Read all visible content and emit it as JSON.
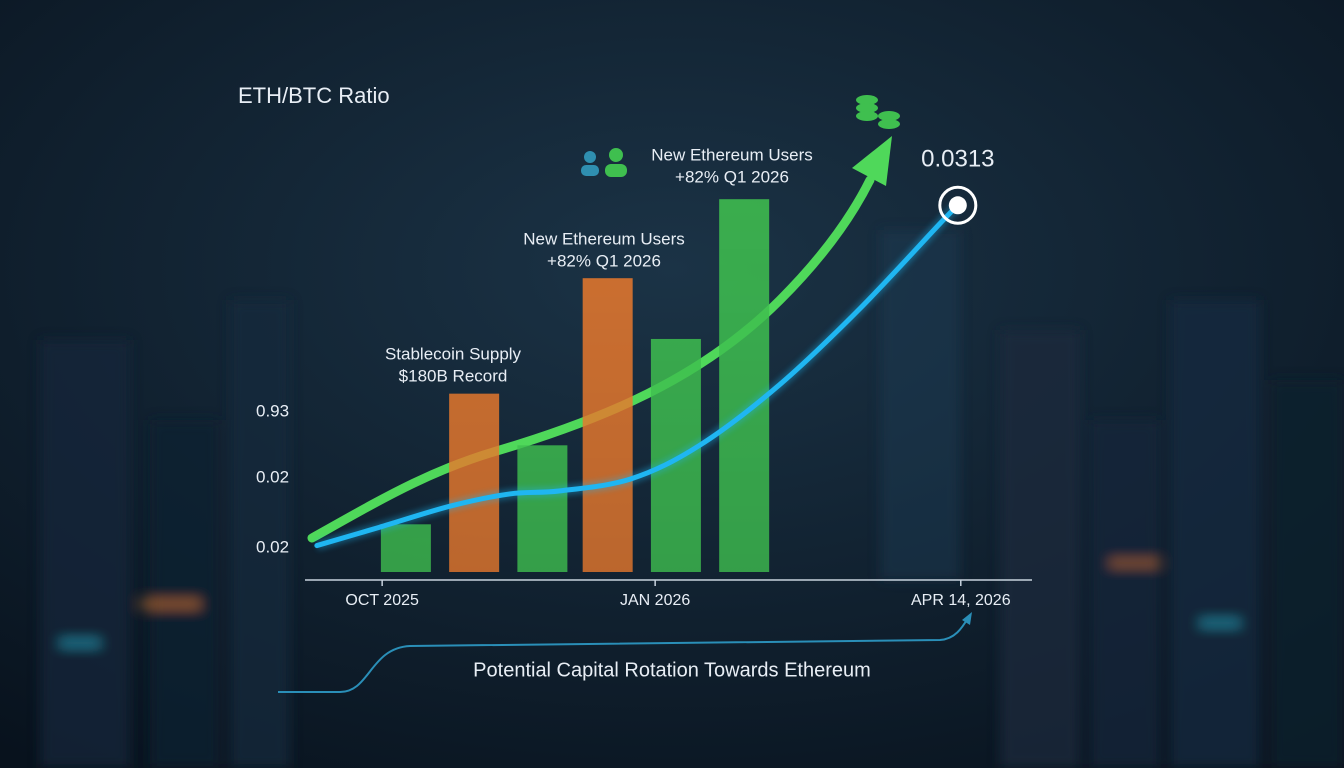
{
  "chart_data": {
    "type": "combo",
    "title": "ETH/BTC Ratio",
    "y_labels": [
      "0.93",
      "0.02",
      "0.02"
    ],
    "ylim": [
      0.019,
      0.032
    ],
    "xlim": [
      -26,
      219
    ],
    "xticks": [
      {
        "value": 0,
        "label": "OCT 2025"
      },
      {
        "value": 92,
        "label": "JAN 2026"
      },
      {
        "value": 195,
        "label": "APR 14, 2026"
      }
    ],
    "bars": {
      "x": [
        8,
        31,
        54,
        76,
        99,
        122
      ],
      "values": [
        0.0208,
        0.0251,
        0.0234,
        0.0289,
        0.0269,
        0.0315
      ],
      "colors": [
        "#3fbf4f",
        "#e8782c",
        "#3fbf4f",
        "#e8782c",
        "#3fbf4f",
        "#3fbf4f"
      ]
    },
    "line": {
      "color": "#1fb6f2",
      "x": [
        -22,
        -1,
        23,
        43,
        60,
        84,
        107,
        134,
        161,
        188,
        194
      ],
      "values": [
        0.0201,
        0.0207,
        0.0214,
        0.0218,
        0.0219,
        0.0223,
        0.0234,
        0.0254,
        0.0279,
        0.0307,
        0.0313
      ]
    },
    "annotations": [
      {
        "lines": [
          "Stablecoin Supply",
          "$180B Record"
        ]
      },
      {
        "lines": [
          "New Ethereum Users",
          "+82% Q1 2026"
        ]
      },
      {
        "lines": [
          "New Ethereum Users",
          "+82% Q1 2026"
        ]
      }
    ],
    "caption": "Potential Capital Rotation Towards Ethereum"
  }
}
